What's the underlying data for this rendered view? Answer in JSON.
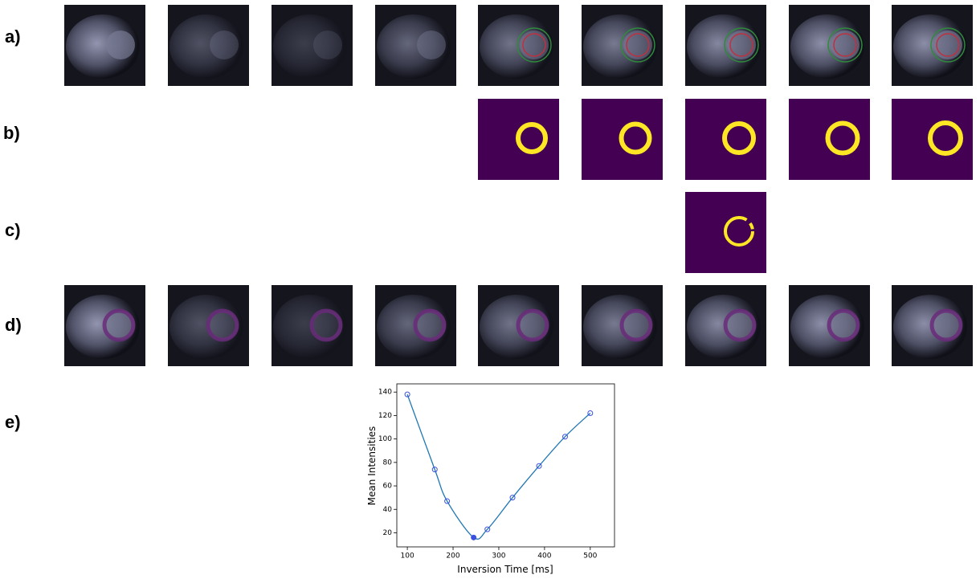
{
  "row_labels": [
    "a)",
    "b)",
    "c)",
    "d)",
    "e)"
  ],
  "chart_data": {
    "type": "line",
    "x_label": "Inversion Time [ms]",
    "y_label": "Mean Intensities",
    "x": [
      100,
      160,
      187,
      245,
      275,
      330,
      388,
      445,
      500
    ],
    "series": [
      {
        "color": "#1f77b4",
        "marker_color": "#3b50e0",
        "values": [
          138,
          74,
          47,
          16,
          23,
          50,
          77,
          102,
          122
        ]
      }
    ],
    "xlim": [
      77,
      553
    ],
    "ylim": [
      8,
      147
    ],
    "xticks": [
      100,
      200,
      300,
      400,
      500
    ],
    "yticks": [
      20,
      40,
      60,
      80,
      100,
      120,
      140
    ]
  }
}
